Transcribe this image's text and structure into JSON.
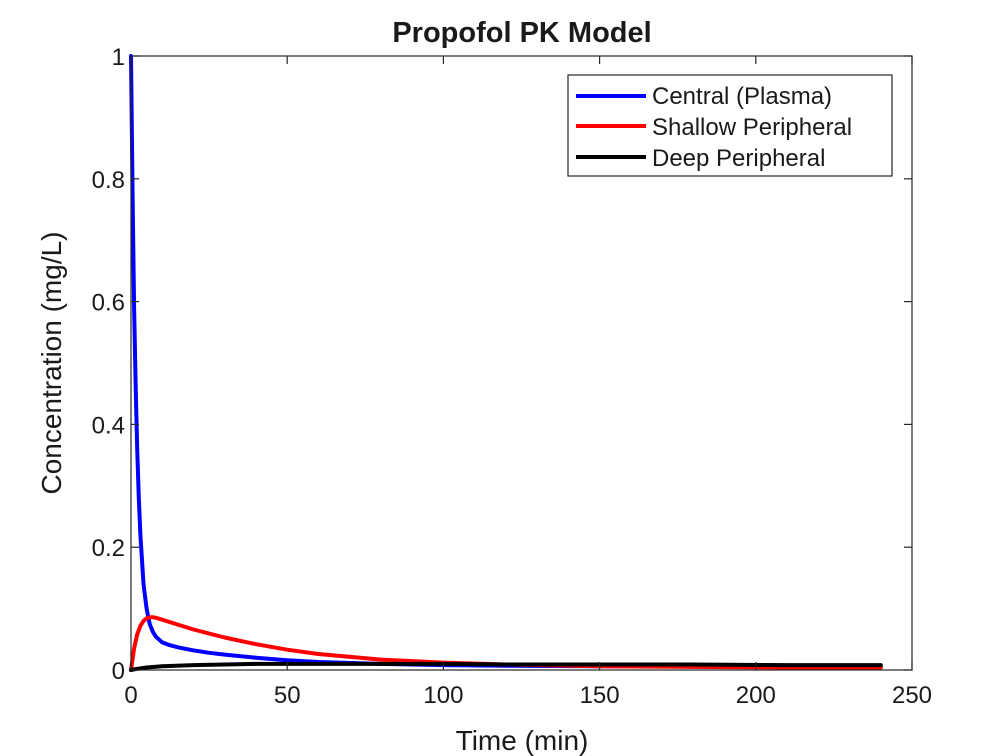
{
  "chart_data": {
    "type": "line",
    "title": "Propofol PK Model",
    "xlabel": "Time (min)",
    "ylabel": "Concentration (mg/L)",
    "xlim": [
      0,
      250
    ],
    "ylim": [
      0,
      1
    ],
    "xticks": [
      0,
      50,
      100,
      150,
      200,
      250
    ],
    "yticks": [
      0,
      0.2,
      0.4,
      0.6,
      0.8,
      1
    ],
    "xtick_labels": [
      "0",
      "50",
      "100",
      "150",
      "200",
      "250"
    ],
    "ytick_labels": [
      "0",
      "0.2",
      "0.4",
      "0.6",
      "0.8",
      "1"
    ],
    "grid": false,
    "legend_position": "top-right",
    "series": [
      {
        "name": "Central (Plasma)",
        "color": "#0000ff",
        "x": [
          0,
          0.5,
          1,
          1.5,
          2,
          2.5,
          3,
          4,
          5,
          6,
          7,
          8,
          10,
          12,
          15,
          20,
          25,
          30,
          40,
          50,
          60,
          80,
          100,
          120,
          150,
          180,
          210,
          240
        ],
        "y": [
          1.0,
          0.77,
          0.59,
          0.46,
          0.36,
          0.28,
          0.22,
          0.14,
          0.1,
          0.075,
          0.062,
          0.054,
          0.045,
          0.041,
          0.037,
          0.032,
          0.028,
          0.025,
          0.02,
          0.016,
          0.013,
          0.01,
          0.008,
          0.007,
          0.006,
          0.006,
          0.005,
          0.005
        ]
      },
      {
        "name": "Shallow Peripheral",
        "color": "#ff0000",
        "x": [
          0,
          1,
          2,
          3,
          4,
          5,
          6,
          7,
          8,
          10,
          15,
          20,
          30,
          40,
          50,
          60,
          80,
          100,
          120,
          150,
          180,
          210,
          240
        ],
        "y": [
          0,
          0.035,
          0.058,
          0.072,
          0.08,
          0.084,
          0.086,
          0.086,
          0.085,
          0.082,
          0.074,
          0.066,
          0.053,
          0.042,
          0.033,
          0.026,
          0.017,
          0.012,
          0.009,
          0.006,
          0.005,
          0.004,
          0.004
        ]
      },
      {
        "name": "Deep Peripheral",
        "color": "#000000",
        "x": [
          0,
          2,
          5,
          10,
          20,
          30,
          40,
          50,
          60,
          80,
          100,
          120,
          150,
          180,
          210,
          240
        ],
        "y": [
          0,
          0.002,
          0.004,
          0.006,
          0.008,
          0.009,
          0.01,
          0.01,
          0.01,
          0.01,
          0.01,
          0.009,
          0.009,
          0.009,
          0.008,
          0.008
        ]
      }
    ]
  }
}
